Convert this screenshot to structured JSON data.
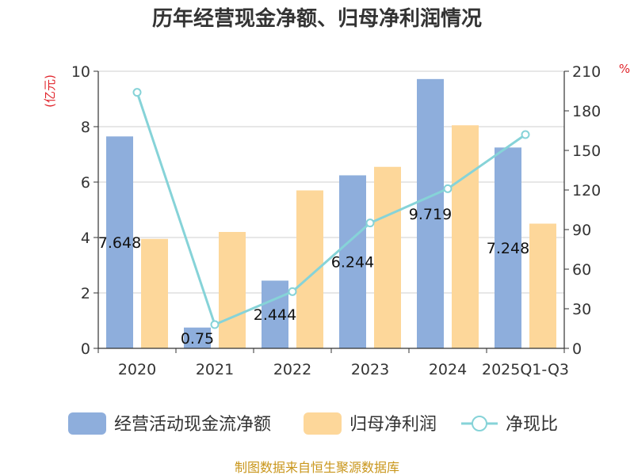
{
  "chart_data": {
    "type": "bar",
    "title": "历年经营现金净额、归母净利润情况",
    "categories": [
      "2020",
      "2021",
      "2022",
      "2023",
      "2024",
      "2025Q1-Q3"
    ],
    "left_axis": {
      "unit": "(亿元)",
      "range": [
        0,
        10
      ],
      "ticks": [
        0,
        2,
        4,
        6,
        8,
        10
      ]
    },
    "right_axis": {
      "unit": "%",
      "range": [
        0,
        210
      ],
      "ticks": [
        0,
        30,
        60,
        90,
        120,
        150,
        180,
        210
      ]
    },
    "grid": true,
    "legend_position": "bottom",
    "series": [
      {
        "name": "经营活动现金流净额",
        "kind": "bar",
        "axis": "left",
        "color": "#8eaedc",
        "values": [
          7.648,
          0.75,
          2.444,
          6.244,
          9.719,
          7.248
        ],
        "labels": [
          "7.648",
          "0.75",
          "2.444",
          "6.244",
          "9.719",
          "7.248"
        ]
      },
      {
        "name": "归母净利润",
        "kind": "bar",
        "axis": "left",
        "color": "#fdd79a",
        "values": [
          3.95,
          4.2,
          5.7,
          6.55,
          8.05,
          4.5
        ]
      },
      {
        "name": "净现比",
        "kind": "line",
        "axis": "right",
        "color": "#86d3d8",
        "values": [
          194,
          18,
          43,
          95,
          121,
          162
        ]
      }
    ]
  },
  "footer": {
    "source": "制图数据来自恒生聚源数据库"
  }
}
